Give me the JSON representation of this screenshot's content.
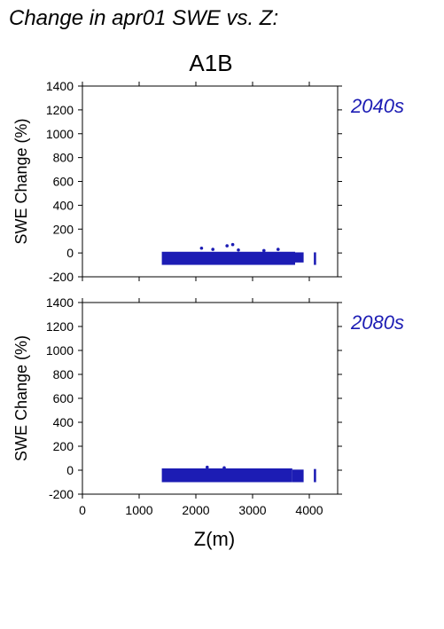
{
  "figure": {
    "title": "Change in apr01 SWE vs. Z:",
    "scenario": "A1B",
    "accent_color": "#1c1cb4"
  },
  "chart_data": [
    {
      "type": "scatter",
      "period_label": "2040s",
      "ylabel": "SWE Change (%)",
      "xlabel": "",
      "xlim": [
        0,
        4500
      ],
      "ylim": [
        -200,
        1400
      ],
      "x_ticks": [],
      "y_ticks": [
        -200,
        0,
        200,
        400,
        600,
        800,
        1000,
        1200,
        1400
      ],
      "bands": [
        {
          "x_range": [
            1400,
            3750
          ],
          "y_range": [
            -100,
            10
          ]
        },
        {
          "x_range": [
            3750,
            3900
          ],
          "y_range": [
            -80,
            5
          ]
        },
        {
          "x_range": [
            4080,
            4120
          ],
          "y_range": [
            -100,
            5
          ]
        }
      ],
      "points": [
        {
          "x": 2100,
          "y": 40
        },
        {
          "x": 2300,
          "y": 30
        },
        {
          "x": 2550,
          "y": 60
        },
        {
          "x": 2650,
          "y": 70
        },
        {
          "x": 2750,
          "y": 25
        },
        {
          "x": 3200,
          "y": 20
        },
        {
          "x": 3450,
          "y": 30
        }
      ]
    },
    {
      "type": "scatter",
      "period_label": "2080s",
      "ylabel": "SWE Change (%)",
      "xlabel": "Z(m)",
      "xlim": [
        0,
        4500
      ],
      "ylim": [
        -200,
        1400
      ],
      "x_ticks": [
        0,
        1000,
        2000,
        3000,
        4000
      ],
      "y_ticks": [
        -200,
        0,
        200,
        400,
        600,
        800,
        1000,
        1200,
        1400
      ],
      "bands": [
        {
          "x_range": [
            1400,
            3700
          ],
          "y_range": [
            -100,
            15
          ]
        },
        {
          "x_range": [
            3700,
            3900
          ],
          "y_range": [
            -100,
            5
          ]
        },
        {
          "x_range": [
            4080,
            4120
          ],
          "y_range": [
            -100,
            10
          ]
        }
      ],
      "points": [
        {
          "x": 2200,
          "y": 25
        },
        {
          "x": 2500,
          "y": 20
        }
      ]
    }
  ]
}
